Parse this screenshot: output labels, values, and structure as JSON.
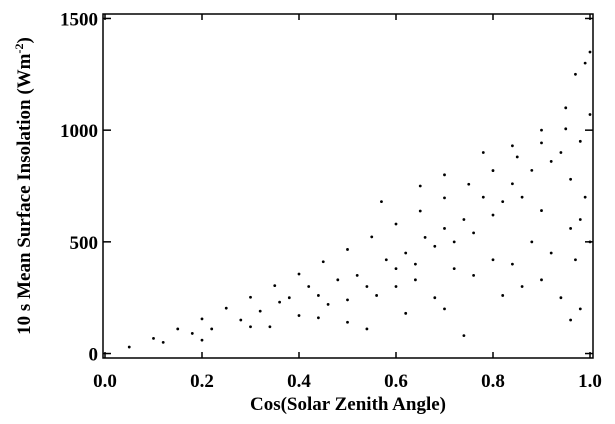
{
  "chart_data": {
    "type": "scatter",
    "xlabel": "Cos(Solar Zenith Angle)",
    "ylabel": "10 s Mean Surface Insolation (Wm",
    "ylabel_sup": "-2",
    "ylabel_end": ")",
    "color": "#000000",
    "xlim": [
      0,
      1
    ],
    "ylim": [
      -20,
      1520
    ],
    "xticks": [
      {
        "value": 0,
        "label": "0.0"
      },
      0.2,
      0.4,
      0.6,
      0.8,
      {
        "value": 1,
        "label": "1.0"
      }
    ],
    "yticks": [
      0,
      500,
      1000,
      1500
    ],
    "x": [
      0.05,
      0.1,
      0.15,
      0.2,
      0.25,
      0.3,
      0.35,
      0.4,
      0.45,
      0.5,
      0.55,
      0.6,
      0.65,
      0.7,
      0.75,
      0.8,
      0.85,
      0.9,
      0.95,
      1.0,
      0.12,
      0.18,
      0.22,
      0.28,
      0.32,
      0.36,
      0.38,
      0.42,
      0.44,
      0.48,
      0.52,
      0.54,
      0.58,
      0.6,
      0.62,
      0.64,
      0.66,
      0.68,
      0.7,
      0.72,
      0.74,
      0.76,
      0.78,
      0.8,
      0.82,
      0.84,
      0.86,
      0.88,
      0.9,
      0.92,
      0.94,
      0.96,
      0.98,
      0.99,
      0.3,
      0.4,
      0.46,
      0.5,
      0.56,
      0.6,
      0.64,
      0.68,
      0.72,
      0.76,
      0.8,
      0.84,
      0.88,
      0.92,
      0.96,
      0.98,
      0.2,
      0.34,
      0.44,
      0.5,
      0.54,
      0.62,
      0.7,
      0.74,
      0.82,
      0.86,
      0.9,
      0.94,
      0.97,
      1.0,
      0.57,
      0.65,
      0.7,
      0.78,
      0.84,
      0.9,
      0.95,
      0.97,
      0.99,
      1.0,
      0.98,
      0.96
    ],
    "values": [
      29,
      68,
      110,
      155,
      203,
      252,
      304,
      356,
      411,
      466,
      522,
      580,
      638,
      697,
      758,
      819,
      880,
      943,
      1006,
      1070,
      50,
      90,
      110,
      150,
      190,
      230,
      250,
      300,
      260,
      330,
      350,
      300,
      420,
      380,
      450,
      400,
      520,
      480,
      560,
      500,
      600,
      540,
      700,
      620,
      680,
      760,
      700,
      820,
      640,
      860,
      900,
      780,
      950,
      700,
      120,
      170,
      220,
      240,
      260,
      300,
      330,
      250,
      380,
      350,
      420,
      400,
      500,
      450,
      560,
      600,
      60,
      120,
      160,
      140,
      110,
      180,
      200,
      80,
      260,
      300,
      330,
      250,
      420,
      500,
      680,
      750,
      800,
      900,
      930,
      1000,
      1100,
      1250,
      1300,
      1350,
      200,
      150
    ]
  }
}
